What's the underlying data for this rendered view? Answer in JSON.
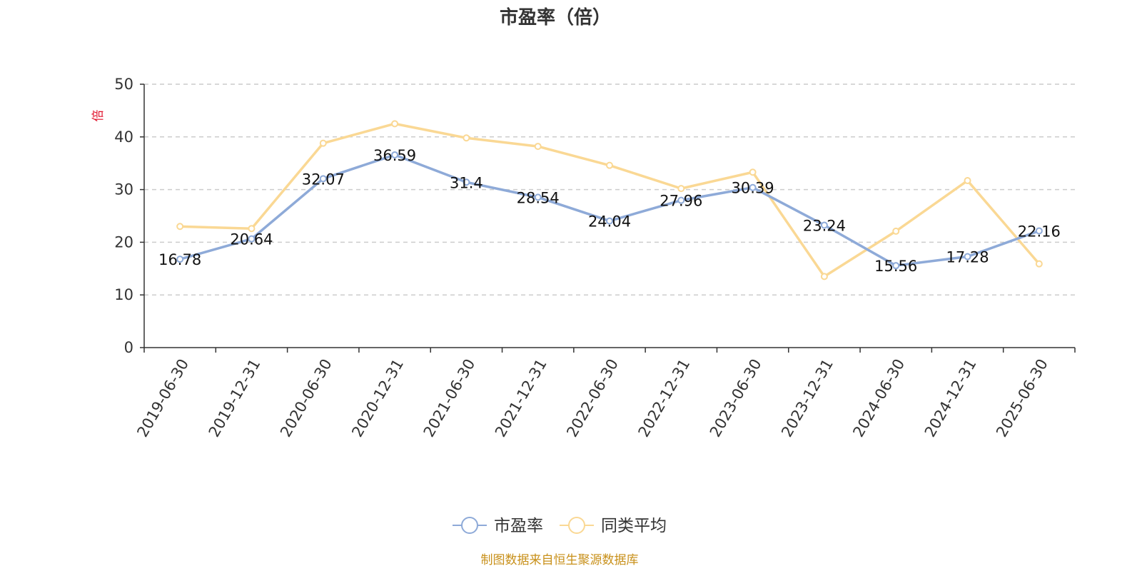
{
  "chart_data": {
    "type": "line",
    "title": "市盈率（倍）",
    "ylabel": "倍",
    "ylim": [
      0,
      50
    ],
    "yticks": [
      0,
      10,
      20,
      30,
      40,
      50
    ],
    "grid": true,
    "legend_position": "bottom",
    "categories": [
      "2019-06-30",
      "2019-12-31",
      "2020-06-30",
      "2020-12-31",
      "2021-06-30",
      "2021-12-31",
      "2022-06-30",
      "2022-12-31",
      "2023-06-30",
      "2023-12-31",
      "2024-06-30",
      "2024-12-31",
      "2025-06-30"
    ],
    "series": [
      {
        "name": "市盈率",
        "color": "#8eaad8",
        "show_labels": true,
        "values": [
          16.78,
          20.64,
          32.07,
          36.59,
          31.4,
          28.54,
          24.04,
          27.96,
          30.39,
          23.24,
          15.56,
          17.28,
          22.16
        ]
      },
      {
        "name": "同类平均",
        "color": "#fad894",
        "show_labels": false,
        "values": [
          23.0,
          22.6,
          38.8,
          42.5,
          39.8,
          38.2,
          34.6,
          30.2,
          33.3,
          13.5,
          22.1,
          31.7,
          15.9
        ]
      }
    ]
  },
  "source_note": "制图数据来自恒生聚源数据库"
}
